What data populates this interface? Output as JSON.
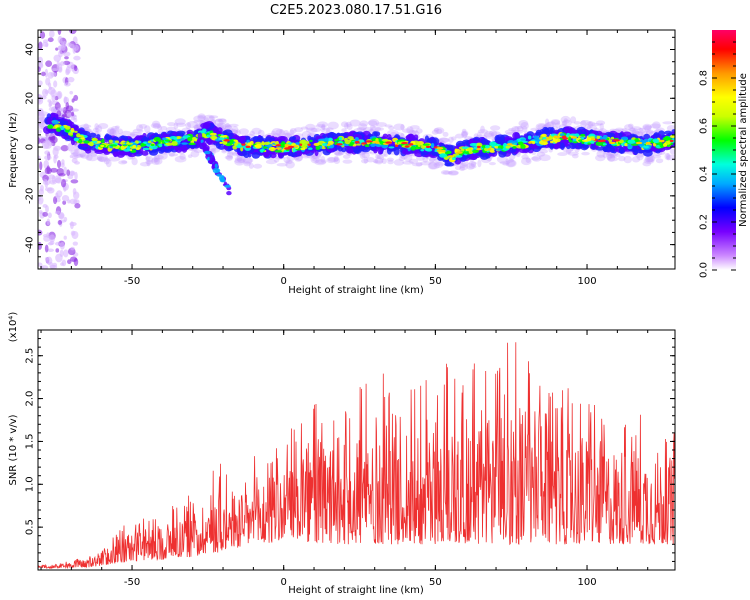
{
  "figure": {
    "title": "C2E5.2023.080.17.51.G16"
  },
  "chart_data": [
    {
      "type": "heatmap",
      "xlabel": "Height of straight line (km)",
      "ylabel": "Frequency (Hz)",
      "xlim": [
        -81,
        129
      ],
      "ylim": [
        -50,
        48
      ],
      "xticks": [
        -50,
        0,
        50,
        100
      ],
      "yticks": [
        -40,
        -20,
        0,
        20,
        40
      ],
      "colorbar": {
        "label": "Normalized spectral amplitude",
        "range": [
          0,
          1
        ],
        "ticks": [
          "0.0",
          "0.2",
          "0.4",
          "0.6",
          "0.8"
        ],
        "tick_values": [
          0,
          0.2,
          0.4,
          0.6,
          0.8
        ],
        "colors": [
          "#ffffff",
          "#cc88ff",
          "#7700ff",
          "#0000ff",
          "#00aaff",
          "#00ffdd",
          "#00ff00",
          "#ccff00",
          "#ffff00",
          "#ff9900",
          "#ff0000",
          "#ff0066"
        ]
      },
      "ridge": {
        "description_points_x": [
          -76,
          -70,
          -65,
          -60,
          -50,
          -40,
          -30,
          -25,
          -20,
          -15,
          -10,
          0,
          10,
          20,
          30,
          40,
          50,
          55,
          60,
          70,
          80,
          90,
          100,
          110,
          120,
          129
        ],
        "description_points_y": [
          10,
          6,
          2,
          1,
          0,
          2,
          3,
          6,
          3,
          1,
          0,
          0,
          1,
          2,
          2,
          1,
          0,
          -4,
          -1,
          0,
          2,
          4,
          3,
          2,
          1,
          3
        ]
      }
    },
    {
      "type": "line",
      "xlabel": "Height of straight line (km)",
      "ylabel": "SNR (10 * v/v)",
      "yscale_label": "(x10⁴)",
      "xlim": [
        -81,
        129
      ],
      "ylim": [
        0,
        2.8
      ],
      "xticks": [
        -50,
        0,
        50,
        100
      ],
      "yticks": [
        "0.5",
        "1.0",
        "1.5",
        "2.0",
        "2.5"
      ],
      "ytick_values": [
        0.5,
        1.0,
        1.5,
        2.0,
        2.5
      ],
      "color": "#ee3030",
      "envelope_x": [
        -81,
        -65,
        -60,
        -55,
        -50,
        -45,
        -40,
        -35,
        -30,
        -25,
        -22,
        -18,
        -15,
        -10,
        -5,
        0,
        5,
        10,
        15,
        20,
        25,
        30,
        35,
        40,
        45,
        50,
        55,
        60,
        65,
        70,
        75,
        80,
        85,
        90,
        95,
        100,
        105,
        110,
        115,
        120,
        125,
        129
      ],
      "envelope_peak": [
        0.05,
        0.15,
        0.3,
        0.45,
        0.6,
        0.6,
        0.7,
        0.8,
        0.9,
        1.1,
        1.3,
        1.2,
        1.2,
        1.35,
        1.4,
        1.5,
        1.8,
        2.0,
        1.9,
        2.0,
        2.2,
        2.3,
        2.35,
        2.35,
        2.2,
        2.3,
        2.45,
        2.4,
        2.5,
        2.6,
        2.75,
        2.5,
        2.4,
        2.2,
        2.1,
        2.0,
        1.9,
        1.85,
        1.8,
        1.85,
        1.75,
        1.6
      ],
      "envelope_floor": [
        0.02,
        0.03,
        0.05,
        0.08,
        0.1,
        0.12,
        0.12,
        0.15,
        0.15,
        0.2,
        0.2,
        0.25,
        0.25,
        0.3,
        0.3,
        0.35,
        0.35,
        0.3,
        0.3,
        0.3,
        0.3,
        0.3,
        0.3,
        0.3,
        0.3,
        0.3,
        0.3,
        0.3,
        0.3,
        0.3,
        0.3,
        0.3,
        0.3,
        0.3,
        0.3,
        0.3,
        0.3,
        0.3,
        0.3,
        0.3,
        0.3,
        0.3
      ]
    }
  ]
}
